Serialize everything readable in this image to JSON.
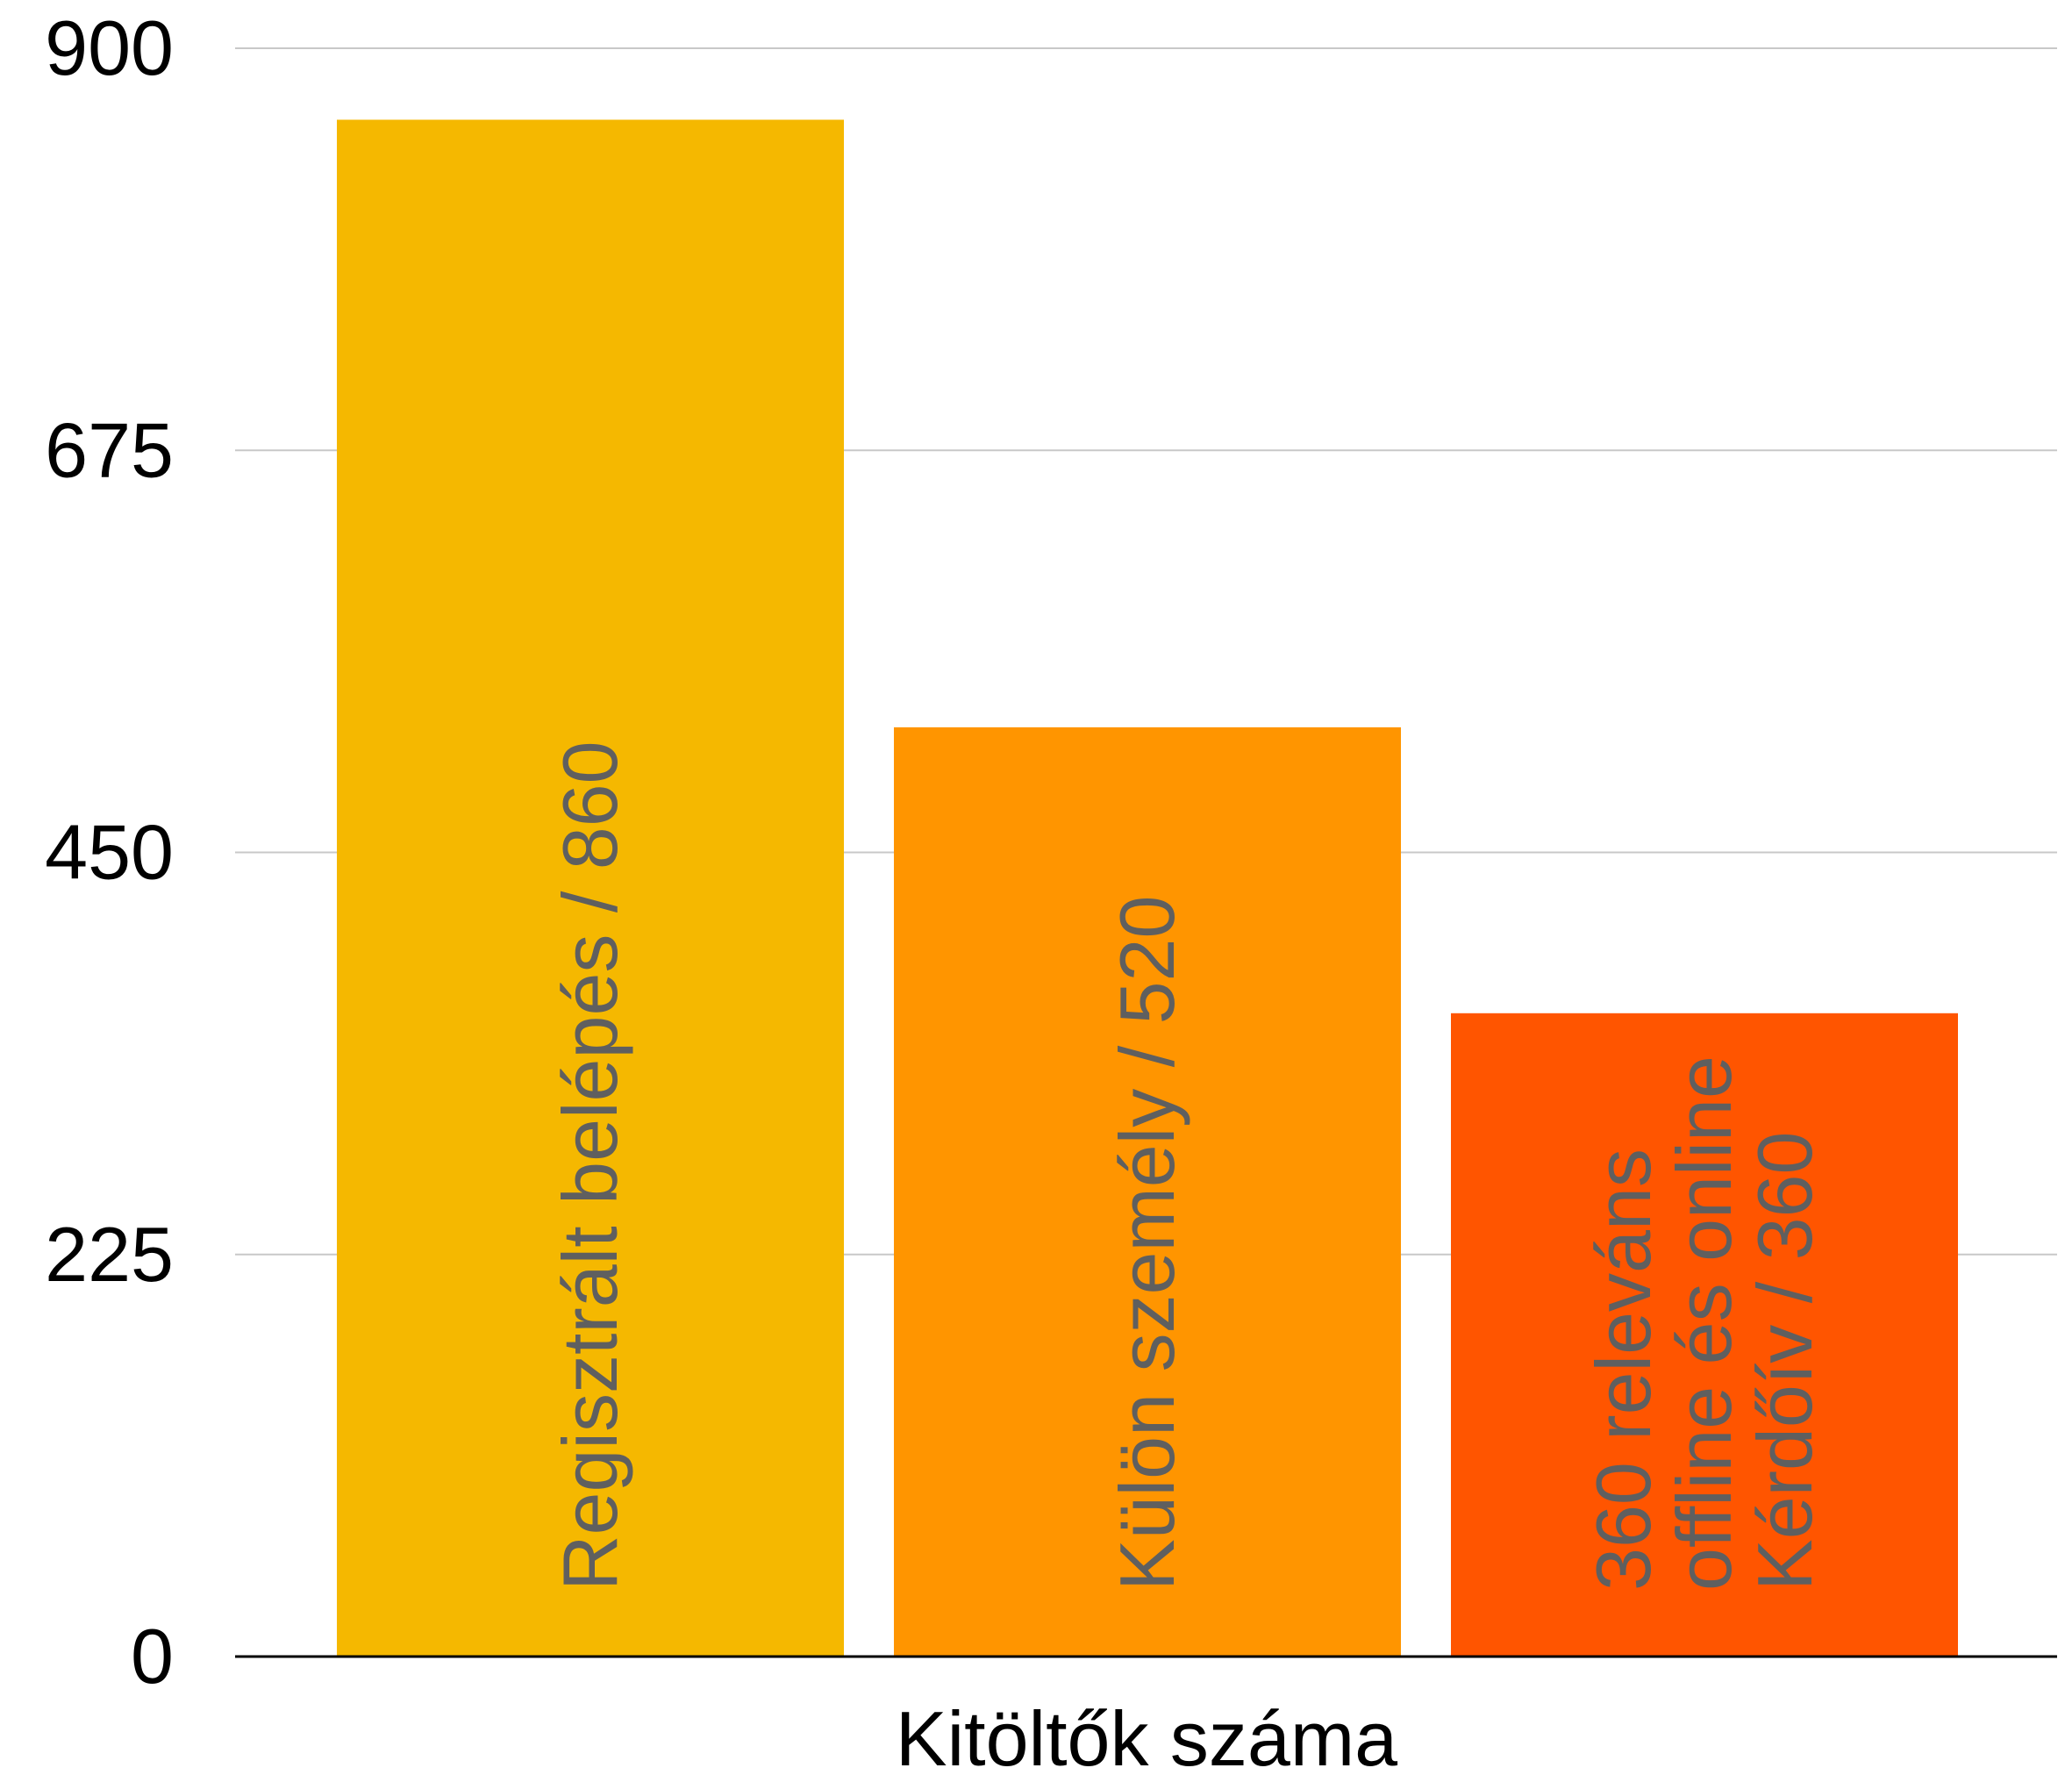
{
  "chart_data": {
    "type": "bar",
    "title": "",
    "xlabel": "Kitöltők száma",
    "ylabel": "",
    "ylim": [
      0,
      900
    ],
    "yticks": [
      0,
      225,
      450,
      675,
      900
    ],
    "grid": true,
    "categories": [
      "Regisztrált belépés / 860",
      "Külön személy / 520",
      "360 releváns offline és online Kérdőív / 360"
    ],
    "values": [
      860,
      520,
      360
    ],
    "bar_labels": [
      [
        "Regisztrált belépés / 860"
      ],
      [
        "Külön személy / 520"
      ],
      [
        "360 releváns",
        "offline és online",
        "Kérdőív / 360"
      ]
    ],
    "colors": [
      "#f5b800",
      "#ff9500",
      "#ff5500"
    ]
  }
}
